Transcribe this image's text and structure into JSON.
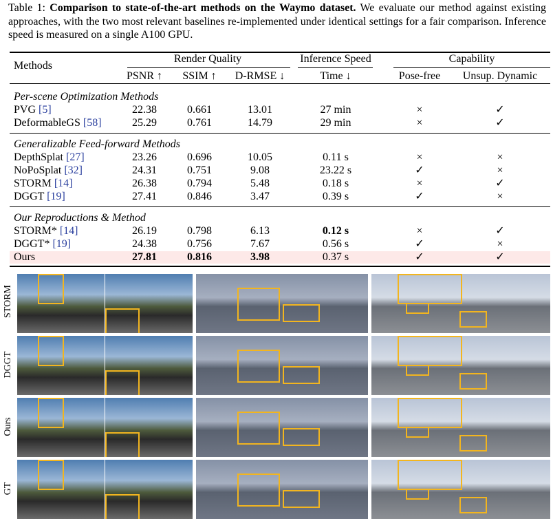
{
  "caption": {
    "label": "Table 1:",
    "title": "Comparison to state-of-the-art methods on the Waymo dataset.",
    "text": "We evaluate our method against existing approaches, with the two most relevant baselines re-implemented under identical settings for a fair comparison. Inference speed is measured on a single A100 GPU."
  },
  "table": {
    "header": {
      "methods": "Methods",
      "groups": [
        "Render Quality",
        "Inference Speed",
        "Capability"
      ],
      "columns": [
        "PSNR ↑",
        "SSIM ↑",
        "D-RMSE ↓",
        "Time ↓",
        "Pose-free",
        "Unsup. Dynamic"
      ]
    },
    "groups": [
      {
        "name": "Per-scene Optimization Methods",
        "rows": [
          {
            "method": "PVG",
            "ref": "[5]",
            "psnr": 22.38,
            "ssim": 0.661,
            "drmse": 13.01,
            "time": "27 min",
            "pose_free": "×",
            "dynamic": "✓"
          },
          {
            "method": "DeformableGS",
            "ref": "[58]",
            "psnr": 25.29,
            "ssim": 0.761,
            "drmse": 14.79,
            "time": "29 min",
            "pose_free": "×",
            "dynamic": "✓"
          }
        ]
      },
      {
        "name": "Generalizable Feed-forward Methods",
        "rows": [
          {
            "method": "DepthSplat",
            "ref": "[27]",
            "psnr": 23.26,
            "ssim": 0.696,
            "drmse": 10.05,
            "time": "0.11 s",
            "pose_free": "×",
            "dynamic": "×"
          },
          {
            "method": "NoPoSplat",
            "ref": "[32]",
            "psnr": 24.31,
            "ssim": 0.751,
            "drmse": 9.08,
            "time": "23.22 s",
            "pose_free": "✓",
            "dynamic": "×"
          },
          {
            "method": "STORM",
            "ref": "[14]",
            "psnr": 26.38,
            "ssim": 0.794,
            "drmse": 5.48,
            "time": "0.18 s",
            "pose_free": "×",
            "dynamic": "✓"
          },
          {
            "method": "DGGT",
            "ref": "[19]",
            "psnr": 27.41,
            "ssim": 0.846,
            "drmse": 3.47,
            "time": "0.39 s",
            "pose_free": "✓",
            "dynamic": "×"
          }
        ]
      },
      {
        "name": "Our Reproductions & Method",
        "rows": [
          {
            "method": "STORM*",
            "ref": "[14]",
            "psnr": 26.19,
            "ssim": 0.798,
            "drmse": 6.13,
            "time": "0.12 s",
            "pose_free": "×",
            "dynamic": "✓",
            "bold": [
              "time"
            ]
          },
          {
            "method": "DGGT*",
            "ref": "[19]",
            "psnr": 24.38,
            "ssim": 0.756,
            "drmse": 7.67,
            "time": "0.56 s",
            "pose_free": "✓",
            "dynamic": "×"
          },
          {
            "method": "Ours",
            "psnr": 27.81,
            "ssim": 0.816,
            "drmse": 3.98,
            "time": "0.37 s",
            "pose_free": "✓",
            "dynamic": "✓",
            "bold": [
              "psnr",
              "ssim",
              "drmse"
            ],
            "highlight": true
          }
        ]
      }
    ]
  },
  "figure": {
    "row_labels": [
      "STORM",
      "DGGT",
      "Ours",
      "GT"
    ]
  }
}
